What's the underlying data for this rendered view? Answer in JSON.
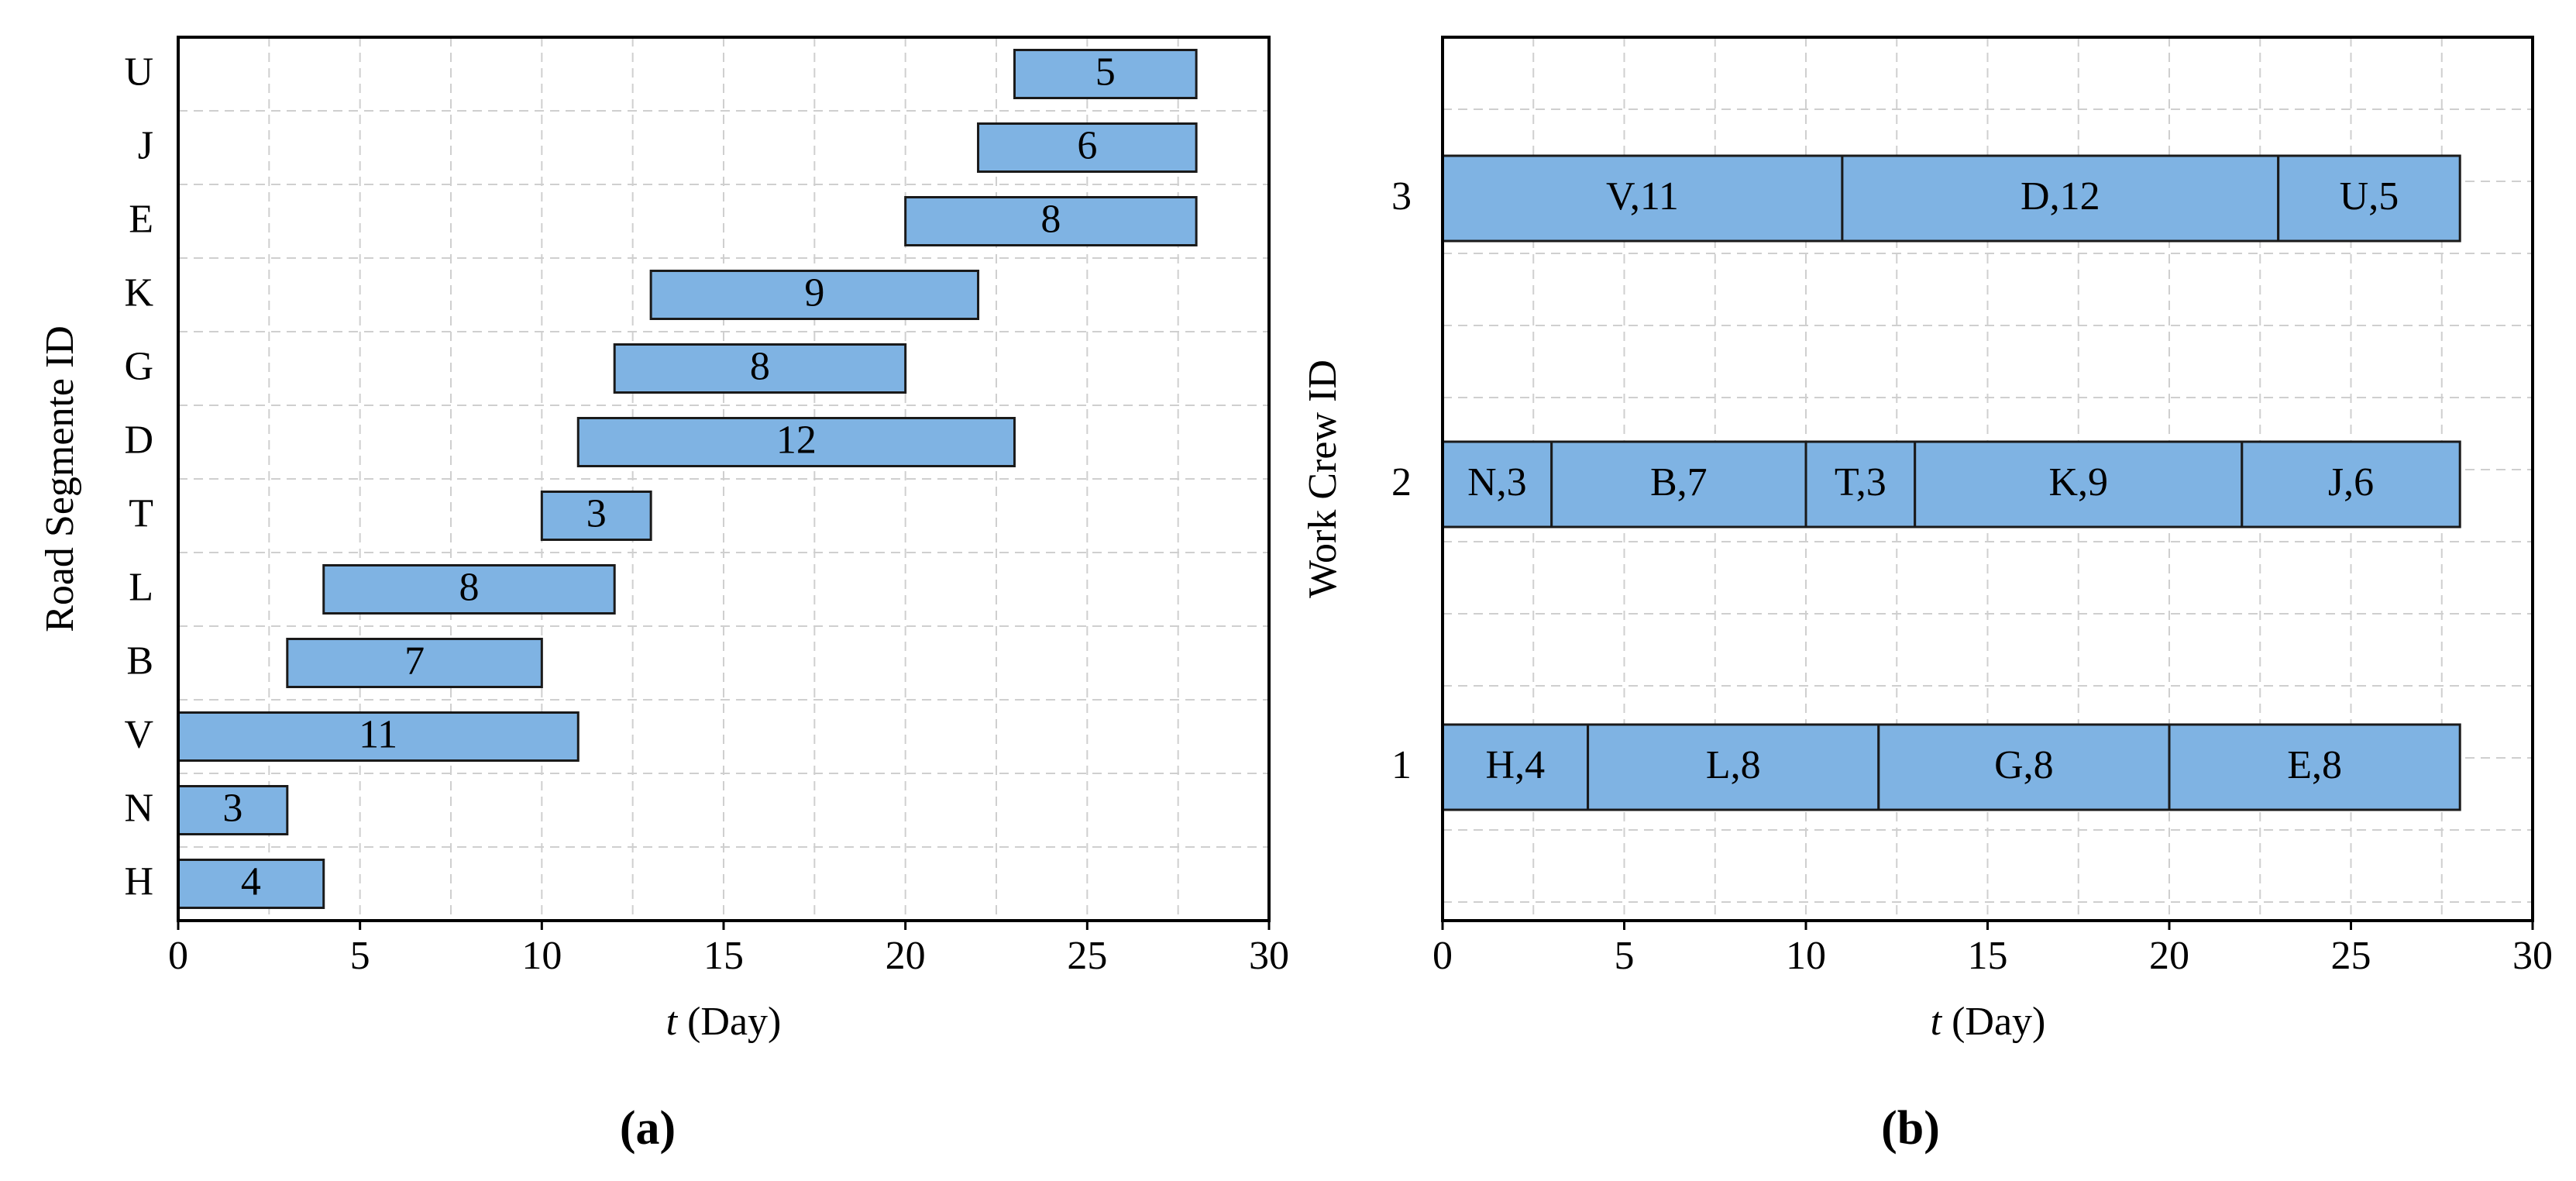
{
  "chart_data": [
    {
      "type": "gantt",
      "panel_label": "(a)",
      "ylabel": "Road Segmente ID",
      "xlabel_italic": "t",
      "xlabel_rest": " (Day)",
      "xlim": [
        0,
        30
      ],
      "xticks": [
        0,
        5,
        10,
        15,
        20,
        25,
        30
      ],
      "grid": true,
      "categories": [
        "H",
        "N",
        "V",
        "B",
        "L",
        "T",
        "D",
        "G",
        "K",
        "E",
        "J",
        "U"
      ],
      "bars": [
        {
          "id": "H",
          "start": 0,
          "duration": 4,
          "label": "4"
        },
        {
          "id": "N",
          "start": 0,
          "duration": 3,
          "label": "3"
        },
        {
          "id": "V",
          "start": 0,
          "duration": 11,
          "label": "11"
        },
        {
          "id": "B",
          "start": 3,
          "duration": 7,
          "label": "7"
        },
        {
          "id": "L",
          "start": 4,
          "duration": 8,
          "label": "8"
        },
        {
          "id": "T",
          "start": 10,
          "duration": 3,
          "label": "3"
        },
        {
          "id": "D",
          "start": 11,
          "duration": 12,
          "label": "12"
        },
        {
          "id": "G",
          "start": 12,
          "duration": 8,
          "label": "8"
        },
        {
          "id": "K",
          "start": 13,
          "duration": 9,
          "label": "9"
        },
        {
          "id": "E",
          "start": 20,
          "duration": 8,
          "label": "8"
        },
        {
          "id": "J",
          "start": 22,
          "duration": 6,
          "label": "6"
        },
        {
          "id": "U",
          "start": 23,
          "duration": 5,
          "label": "5"
        }
      ]
    },
    {
      "type": "gantt",
      "panel_label": "(b)",
      "ylabel": "Work Crew ID",
      "xlabel_italic": "t",
      "xlabel_rest": " (Day)",
      "xlim": [
        0,
        30
      ],
      "xticks": [
        0,
        5,
        10,
        15,
        20,
        25,
        30
      ],
      "grid": true,
      "categories": [
        "1",
        "2",
        "3"
      ],
      "bars": [
        {
          "crew": "1",
          "start": 0,
          "duration": 4,
          "label": "H,4"
        },
        {
          "crew": "1",
          "start": 4,
          "duration": 8,
          "label": "L,8"
        },
        {
          "crew": "1",
          "start": 12,
          "duration": 8,
          "label": "G,8"
        },
        {
          "crew": "1",
          "start": 20,
          "duration": 8,
          "label": "E,8"
        },
        {
          "crew": "2",
          "start": 0,
          "duration": 3,
          "label": "N,3"
        },
        {
          "crew": "2",
          "start": 3,
          "duration": 7,
          "label": "B,7"
        },
        {
          "crew": "2",
          "start": 10,
          "duration": 3,
          "label": "T,3"
        },
        {
          "crew": "2",
          "start": 13,
          "duration": 9,
          "label": "K,9"
        },
        {
          "crew": "2",
          "start": 22,
          "duration": 6,
          "label": "J,6"
        },
        {
          "crew": "3",
          "start": 0,
          "duration": 11,
          "label": "V,11"
        },
        {
          "crew": "3",
          "start": 11,
          "duration": 12,
          "label": "D,12"
        },
        {
          "crew": "3",
          "start": 23,
          "duration": 5,
          "label": "U,5"
        }
      ]
    }
  ],
  "colors": {
    "bar_fill": "#7FB3E3",
    "bar_stroke": "#1a1a1a",
    "grid": "#cfcfcf",
    "frame": "#000000"
  }
}
